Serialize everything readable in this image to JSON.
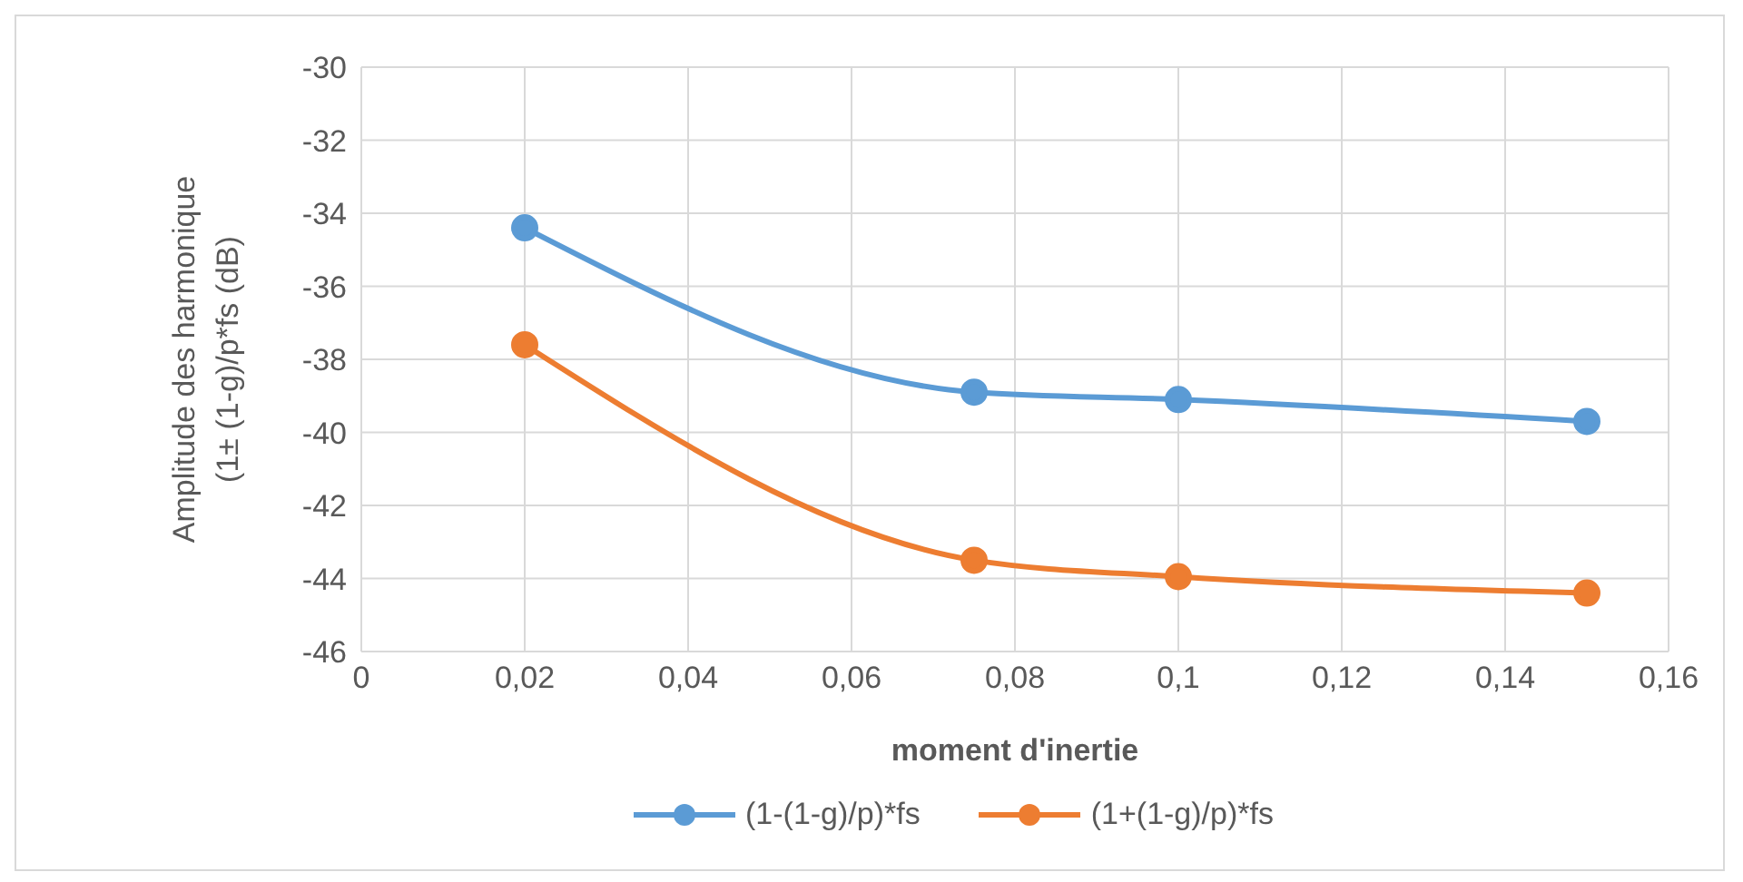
{
  "chart_data": {
    "type": "line",
    "xlabel": "moment d'inertie",
    "ylabel": "Amplitude des harmonique\n(1± (1-g)/p*fs (dB)",
    "x": [
      0.02,
      0.075,
      0.1,
      0.15
    ],
    "series": [
      {
        "name": "(1-(1-g)/p)*fs",
        "color": "#5b9bd5",
        "values": [
          -34.4,
          -38.9,
          -39.1,
          -39.7
        ]
      },
      {
        "name": "(1+(1-g)/p)*fs",
        "color": "#ed7d31",
        "values": [
          -37.6,
          -43.5,
          -43.95,
          -44.4
        ]
      }
    ],
    "xlim": [
      0,
      0.16
    ],
    "xticks": [
      0,
      {
        "value": 0.02,
        "label": "0,02"
      },
      {
        "value": 0.04,
        "label": "0,04"
      },
      {
        "value": 0.06,
        "label": "0,06"
      },
      {
        "value": 0.08,
        "label": "0,08"
      },
      {
        "value": 0.1,
        "label": "0,1"
      },
      {
        "value": 0.12,
        "label": "0,12"
      },
      {
        "value": 0.14,
        "label": "0,14"
      },
      {
        "value": 0.16,
        "label": "0,16"
      }
    ],
    "ylim": [
      -46,
      -30
    ],
    "yticks": [
      -46,
      -44,
      -42,
      -40,
      -38,
      -36,
      -34,
      -32,
      -30
    ],
    "grid": true,
    "legend": "bottom",
    "marker": "circle",
    "line_style": "solid"
  }
}
